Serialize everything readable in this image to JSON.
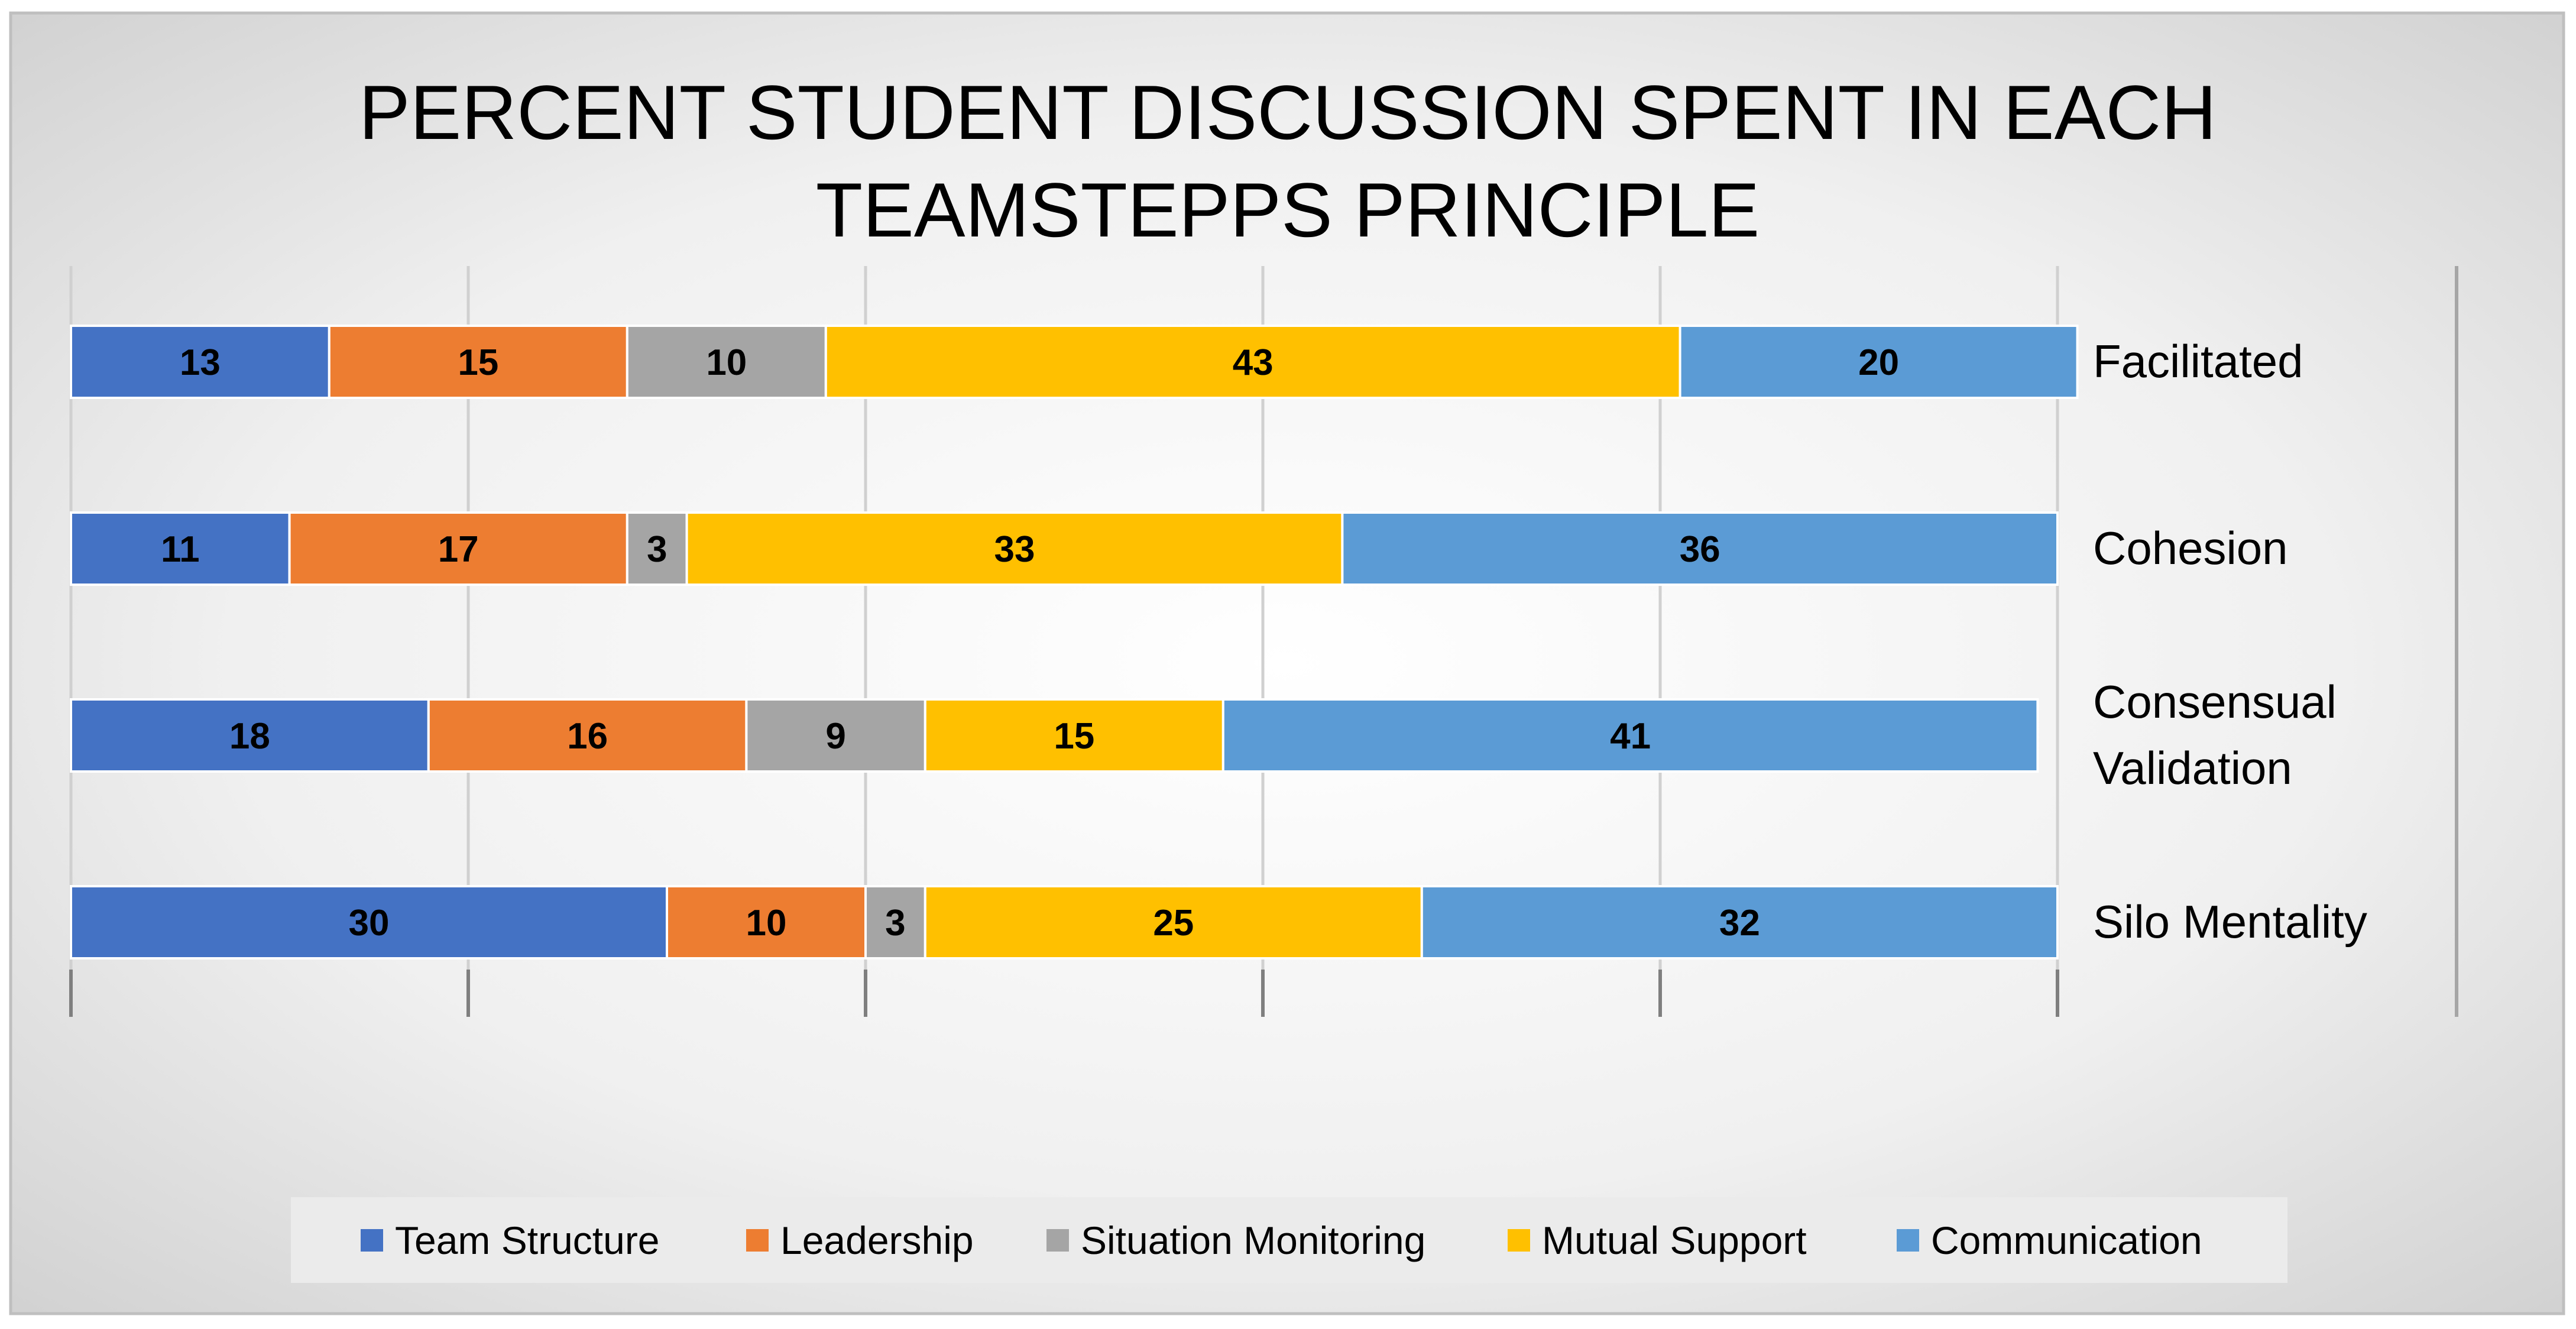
{
  "chart_data": {
    "type": "bar",
    "orientation": "horizontal",
    "stacked": true,
    "title_lines": [
      "PERCENT STUDENT DISCUSSION SPENT IN EACH",
      "TEAMSTEPPS PRINCIPLE"
    ],
    "categories": [
      [
        "Facilitated"
      ],
      [
        "Cohesion"
      ],
      [
        "Consensual",
        "Validation"
      ],
      [
        "Silo Mentality"
      ]
    ],
    "series": [
      {
        "name": "Team Structure",
        "color": "#4472C4",
        "values": [
          13,
          11,
          18,
          30
        ]
      },
      {
        "name": "Leadership",
        "color": "#ED7D31",
        "values": [
          15,
          17,
          16,
          10
        ]
      },
      {
        "name": "Situation Monitoring",
        "color": "#A5A5A5",
        "values": [
          10,
          3,
          9,
          3
        ]
      },
      {
        "name": "Mutual Support",
        "color": "#FFC000",
        "values": [
          43,
          33,
          15,
          25
        ]
      },
      {
        "name": "Communication",
        "color": "#5B9BD5",
        "values": [
          20,
          36,
          41,
          32
        ]
      }
    ],
    "xlim": [
      0,
      100
    ],
    "grid": true,
    "data_labels": true,
    "legend_position": "bottom",
    "category_label_position": "right"
  }
}
